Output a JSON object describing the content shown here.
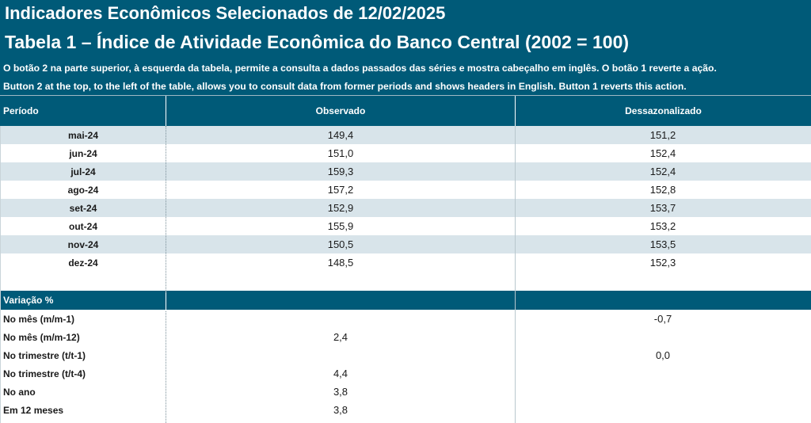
{
  "header": {
    "title": "Indicadores Econômicos Selecionados de 12/02/2025",
    "table_title": "Tabela 1 – Índice de Atividade Econômica do Banco Central (2002 = 100)",
    "note_pt": "O botão 2 na parte superior, à esquerda da tabela, permite a consulta a dados passados das séries e mostra cabeçalho em inglês. O botão 1 reverte a ação.",
    "note_en": "Button 2 at the top, to the left of the table, allows you to consult data from former periods and shows headers in English. Button 1 reverts this action."
  },
  "columns": {
    "period": "Período",
    "observed": "Observado",
    "seasonally_adjusted": "Dessazonalizado"
  },
  "rows": [
    {
      "period": "mai-24",
      "observed": "149,4",
      "adjusted": "151,2"
    },
    {
      "period": "jun-24",
      "observed": "151,0",
      "adjusted": "152,4"
    },
    {
      "period": "jul-24",
      "observed": "159,3",
      "adjusted": "152,4"
    },
    {
      "period": "ago-24",
      "observed": "157,2",
      "adjusted": "152,8"
    },
    {
      "period": "set-24",
      "observed": "152,9",
      "adjusted": "153,7"
    },
    {
      "period": "out-24",
      "observed": "155,9",
      "adjusted": "153,2"
    },
    {
      "period": "nov-24",
      "observed": "150,5",
      "adjusted": "153,5"
    },
    {
      "period": "dez-24",
      "observed": "148,5",
      "adjusted": "152,3"
    }
  ],
  "variation": {
    "label": "Variação %",
    "rows": [
      {
        "label": "No mês (m/m-1)",
        "observed": "",
        "adjusted": "-0,7"
      },
      {
        "label": "No mês (m/m-12)",
        "observed": "2,4",
        "adjusted": ""
      },
      {
        "label": "No trimestre (t/t-1)",
        "observed": "",
        "adjusted": "0,0"
      },
      {
        "label": "No trimestre (t/t-4)",
        "observed": "4,4",
        "adjusted": ""
      },
      {
        "label": "No ano",
        "observed": "3,8",
        "adjusted": ""
      },
      {
        "label": "Em 12 meses",
        "observed": "3,8",
        "adjusted": ""
      }
    ]
  },
  "colors": {
    "header_bg": "#005a78",
    "shaded_row": "#d8e4ea"
  }
}
